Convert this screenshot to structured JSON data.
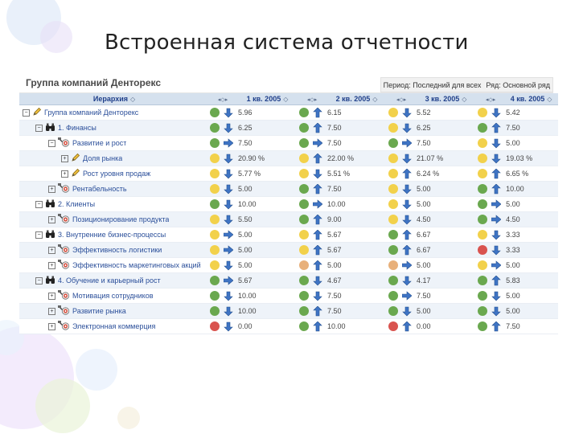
{
  "slide": {
    "title": "Встроенная система отчетности"
  },
  "report": {
    "group_title": "Группа компаний Денторекс",
    "filter_period": "Период: Последний для всех",
    "filter_row": "Ряд: Основной ряд"
  },
  "columns": {
    "hierarchy": "Иерархия",
    "q1": "1 кв. 2005",
    "q2": "2 кв. 2005",
    "q3": "3 кв. 2005",
    "q4": "4 кв. 2005"
  },
  "colors": {
    "green": "#6aa84f",
    "yellow": "#f2d14b",
    "red": "#d9534f",
    "orange": "#e8b07a",
    "arrow": "#3f74c4"
  },
  "rows": [
    {
      "level": 0,
      "toggle": "−",
      "icon": "pencil-icon",
      "label": "Группа компаний Денторекс",
      "cells": [
        {
          "s": "green",
          "t": "down",
          "v": "5.96"
        },
        {
          "s": "green",
          "t": "up",
          "v": "6.15"
        },
        {
          "s": "yellow",
          "t": "down",
          "v": "5.52"
        },
        {
          "s": "yellow",
          "t": "down",
          "v": "5.42"
        }
      ]
    },
    {
      "level": 1,
      "toggle": "−",
      "icon": "binoculars-icon",
      "label": "1. Финансы",
      "cells": [
        {
          "s": "green",
          "t": "down",
          "v": "6.25"
        },
        {
          "s": "green",
          "t": "up",
          "v": "7.50"
        },
        {
          "s": "yellow",
          "t": "down",
          "v": "6.25"
        },
        {
          "s": "green",
          "t": "up",
          "v": "7.50"
        }
      ]
    },
    {
      "level": 2,
      "toggle": "−",
      "icon": "scale-icon",
      "label": "Развитие и рост",
      "cells": [
        {
          "s": "green",
          "t": "right",
          "v": "7.50"
        },
        {
          "s": "green",
          "t": "right",
          "v": "7.50"
        },
        {
          "s": "green",
          "t": "right",
          "v": "7.50"
        },
        {
          "s": "yellow",
          "t": "down",
          "v": "5.00"
        }
      ]
    },
    {
      "level": 3,
      "toggle": "+",
      "icon": "pencil-icon",
      "label": "Доля рынка",
      "cells": [
        {
          "s": "yellow",
          "t": "down",
          "v": "20.90 %"
        },
        {
          "s": "yellow",
          "t": "up",
          "v": "22.00 %"
        },
        {
          "s": "yellow",
          "t": "down",
          "v": "21.07 %"
        },
        {
          "s": "yellow",
          "t": "down",
          "v": "19.03 %"
        }
      ]
    },
    {
      "level": 3,
      "toggle": "+",
      "icon": "pencil-icon",
      "label": "Рост уровня продаж",
      "cells": [
        {
          "s": "yellow",
          "t": "down",
          "v": "5.77 %"
        },
        {
          "s": "yellow",
          "t": "down",
          "v": "5.51 %"
        },
        {
          "s": "yellow",
          "t": "up",
          "v": "6.24 %"
        },
        {
          "s": "yellow",
          "t": "up",
          "v": "6.65 %"
        }
      ]
    },
    {
      "level": 2,
      "toggle": "+",
      "icon": "scale-icon",
      "label": "Рентабельность",
      "cells": [
        {
          "s": "yellow",
          "t": "down",
          "v": "5.00"
        },
        {
          "s": "green",
          "t": "up",
          "v": "7.50"
        },
        {
          "s": "yellow",
          "t": "down",
          "v": "5.00"
        },
        {
          "s": "green",
          "t": "up",
          "v": "10.00"
        }
      ]
    },
    {
      "level": 1,
      "toggle": "−",
      "icon": "binoculars-icon",
      "label": "2. Клиенты",
      "cells": [
        {
          "s": "green",
          "t": "down",
          "v": "10.00"
        },
        {
          "s": "green",
          "t": "right",
          "v": "10.00"
        },
        {
          "s": "yellow",
          "t": "down",
          "v": "5.00"
        },
        {
          "s": "green",
          "t": "right",
          "v": "5.00"
        }
      ]
    },
    {
      "level": 2,
      "toggle": "+",
      "icon": "scale-icon",
      "label": "Позиционирование продукта",
      "cells": [
        {
          "s": "yellow",
          "t": "down",
          "v": "5.50"
        },
        {
          "s": "green",
          "t": "up",
          "v": "9.00"
        },
        {
          "s": "yellow",
          "t": "down",
          "v": "4.50"
        },
        {
          "s": "green",
          "t": "right",
          "v": "4.50"
        }
      ]
    },
    {
      "level": 1,
      "toggle": "−",
      "icon": "binoculars-icon",
      "label": "3. Внутренние бизнес-процессы",
      "cells": [
        {
          "s": "yellow",
          "t": "right",
          "v": "5.00"
        },
        {
          "s": "yellow",
          "t": "up",
          "v": "5.67"
        },
        {
          "s": "green",
          "t": "up",
          "v": "6.67"
        },
        {
          "s": "yellow",
          "t": "down",
          "v": "3.33"
        }
      ]
    },
    {
      "level": 2,
      "toggle": "+",
      "icon": "scale-icon",
      "label": "Эффективность логистики",
      "cells": [
        {
          "s": "yellow",
          "t": "right",
          "v": "5.00"
        },
        {
          "s": "yellow",
          "t": "up",
          "v": "5.67"
        },
        {
          "s": "green",
          "t": "up",
          "v": "6.67"
        },
        {
          "s": "red",
          "t": "down",
          "v": "3.33"
        }
      ]
    },
    {
      "level": 2,
      "toggle": "+",
      "icon": "scale-icon",
      "label": "Эффективность маркетинговых акций",
      "cells": [
        {
          "s": "yellow",
          "t": "down",
          "v": "5.00"
        },
        {
          "s": "orange",
          "t": "up",
          "v": "5.00"
        },
        {
          "s": "orange",
          "t": "right",
          "v": "5.00"
        },
        {
          "s": "yellow",
          "t": "right",
          "v": "5.00"
        }
      ]
    },
    {
      "level": 1,
      "toggle": "−",
      "icon": "binoculars-icon",
      "label": "4. Обучение и карьерный рост",
      "cells": [
        {
          "s": "green",
          "t": "right",
          "v": "5.67"
        },
        {
          "s": "green",
          "t": "down",
          "v": "4.67"
        },
        {
          "s": "green",
          "t": "down",
          "v": "4.17"
        },
        {
          "s": "green",
          "t": "up",
          "v": "5.83"
        }
      ]
    },
    {
      "level": 2,
      "toggle": "+",
      "icon": "scale-icon",
      "label": "Мотивация сотрудников",
      "cells": [
        {
          "s": "green",
          "t": "down",
          "v": "10.00"
        },
        {
          "s": "green",
          "t": "down",
          "v": "7.50"
        },
        {
          "s": "green",
          "t": "right",
          "v": "7.50"
        },
        {
          "s": "green",
          "t": "down",
          "v": "5.00"
        }
      ]
    },
    {
      "level": 2,
      "toggle": "+",
      "icon": "scale-icon",
      "label": "Развитие рынка",
      "cells": [
        {
          "s": "green",
          "t": "down",
          "v": "10.00"
        },
        {
          "s": "green",
          "t": "up",
          "v": "7.50"
        },
        {
          "s": "green",
          "t": "down",
          "v": "5.00"
        },
        {
          "s": "green",
          "t": "down",
          "v": "5.00"
        }
      ]
    },
    {
      "level": 2,
      "toggle": "+",
      "icon": "scale-icon",
      "label": "Электронная коммерция",
      "cells": [
        {
          "s": "red",
          "t": "down",
          "v": "0.00"
        },
        {
          "s": "green",
          "t": "up",
          "v": "10.00"
        },
        {
          "s": "red",
          "t": "up",
          "v": "0.00"
        },
        {
          "s": "green",
          "t": "up",
          "v": "7.50"
        }
      ]
    }
  ]
}
